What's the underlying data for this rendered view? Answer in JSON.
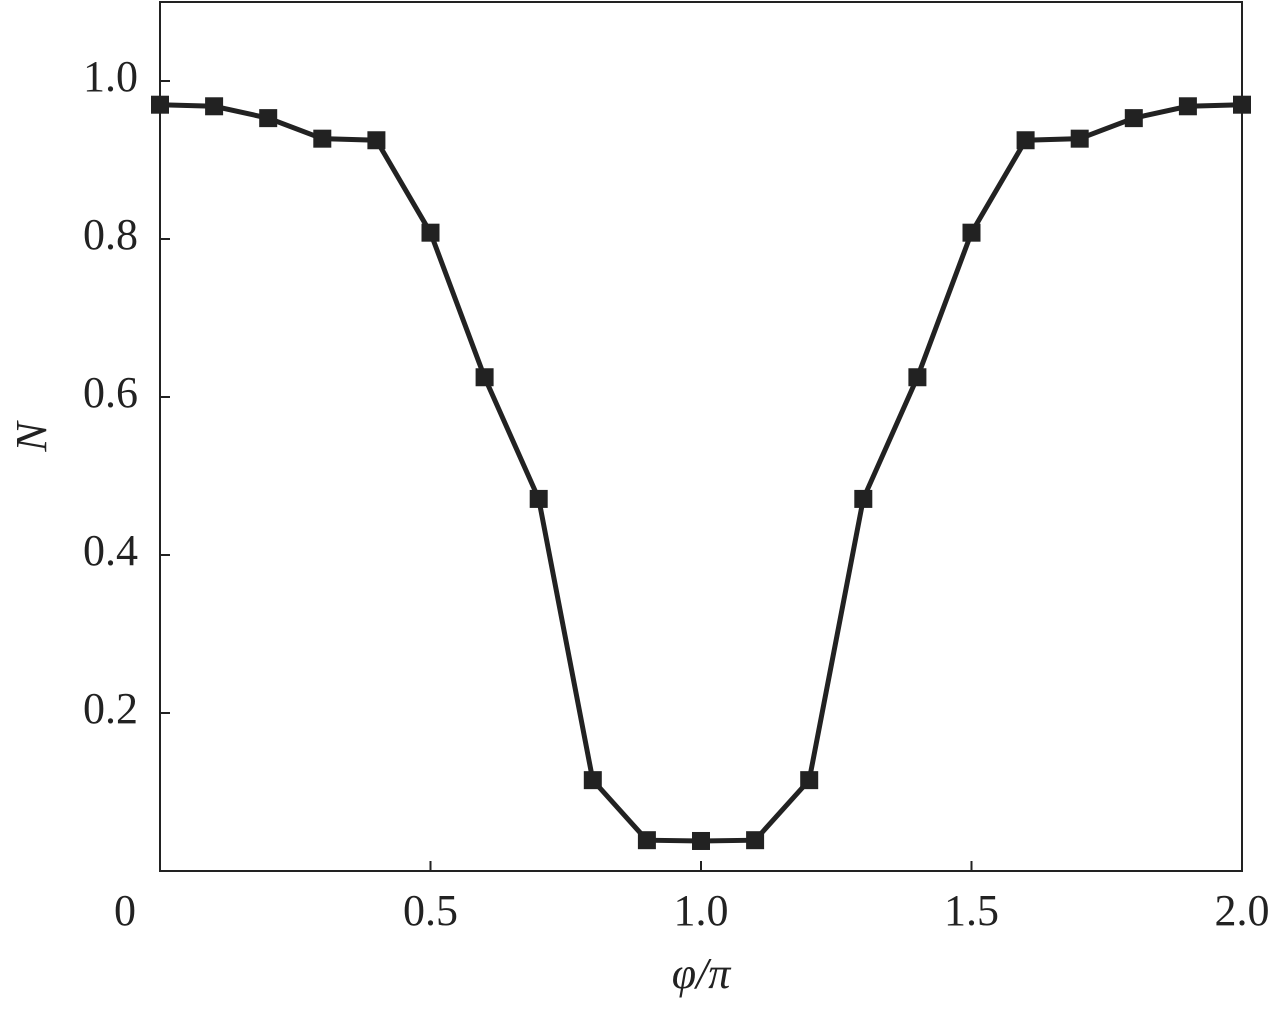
{
  "chart_data": {
    "type": "line",
    "xlabel": "φ/π",
    "ylabel": "N",
    "x": [
      0,
      0.1,
      0.2,
      0.3,
      0.4,
      0.5,
      0.6,
      0.7,
      0.8,
      0.9,
      1.0,
      1.1,
      1.2,
      1.3,
      1.4,
      1.5,
      1.6,
      1.7,
      1.8,
      1.9,
      2.0
    ],
    "series": [
      {
        "name": "N",
        "color": "#222222",
        "values": [
          0.97,
          0.968,
          0.953,
          0.927,
          0.925,
          0.808,
          0.625,
          0.471,
          0.115,
          0.039,
          0.038,
          0.039,
          0.115,
          0.471,
          0.625,
          0.808,
          0.925,
          0.927,
          0.953,
          0.968,
          0.97
        ]
      }
    ],
    "xlim": [
      0,
      2.0
    ],
    "ylim": [
      0,
      1.1
    ],
    "xticks": [
      0,
      0.5,
      {
        "value": 1.0,
        "label": "1.0"
      },
      1.5,
      {
        "value": 2.0,
        "label": "2.0"
      }
    ],
    "yticks": [
      0.2,
      0.4,
      0.6,
      0.8,
      {
        "value": 1.0,
        "label": "1.0"
      }
    ],
    "grid": false
  }
}
